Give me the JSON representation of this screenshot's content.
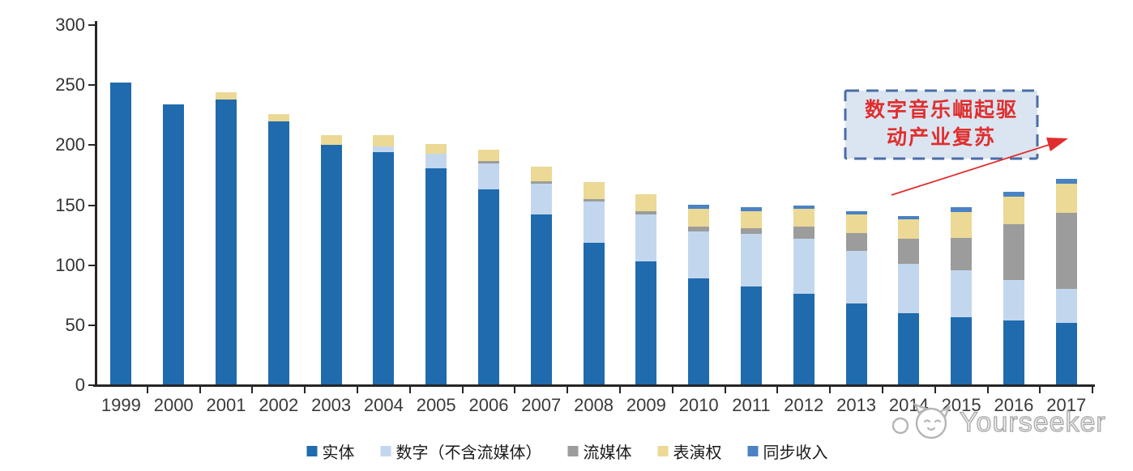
{
  "chart": {
    "annotation": {
      "line1": "数字音乐崛起驱",
      "line2": "动产业复苏",
      "text_color": "#E02E2E",
      "box_fill": "#DAE5F1",
      "box_border": "#4A6DA7",
      "arrow_color": "#E02E2E"
    },
    "watermark": "Yourseeker",
    "axis_color": "#262626"
  },
  "chart_data": {
    "type": "bar",
    "stacked": true,
    "title": "",
    "xlabel": "",
    "ylabel": "",
    "ylim": [
      0,
      300
    ],
    "yticks": [
      0,
      50,
      100,
      150,
      200,
      250,
      300
    ],
    "grid": false,
    "legend_position": "bottom",
    "categories": [
      "1999",
      "2000",
      "2001",
      "2002",
      "2003",
      "2004",
      "2005",
      "2006",
      "2007",
      "2008",
      "2009",
      "2010",
      "2011",
      "2012",
      "2013",
      "2014",
      "2015",
      "2016",
      "2017"
    ],
    "series": [
      {
        "name": "实体",
        "color": "#1F6BAE",
        "values": [
          252,
          234,
          238,
          220,
          200,
          194,
          181,
          163,
          142,
          119,
          103,
          89,
          82,
          76,
          68,
          60,
          57,
          54,
          52
        ]
      },
      {
        "name": "数字（不含流媒体）",
        "color": "#C2D7EE",
        "values": [
          0,
          0,
          0,
          0,
          0,
          5,
          12,
          22,
          26,
          34,
          39,
          39,
          44,
          46,
          44,
          41,
          39,
          34,
          28
        ]
      },
      {
        "name": "流媒体",
        "color": "#9C9C9C",
        "values": [
          0,
          0,
          0,
          0,
          0,
          0,
          0,
          2,
          2,
          2,
          3,
          4,
          5,
          10,
          15,
          21,
          27,
          46,
          64
        ]
      },
      {
        "name": "表演权",
        "color": "#EBD995",
        "values": [
          0,
          0,
          6,
          6,
          8,
          9,
          8,
          9,
          12,
          14,
          14,
          15,
          14,
          15,
          15,
          16,
          21,
          23,
          24
        ]
      },
      {
        "name": "同步收入",
        "color": "#4A82C4",
        "values": [
          0,
          0,
          0,
          0,
          0,
          0,
          0,
          0,
          0,
          0,
          0,
          3,
          3,
          3,
          3,
          3,
          4,
          4,
          4
        ]
      }
    ],
    "totals": [
      252,
      234,
      244,
      226,
      208,
      208,
      201,
      196,
      182,
      169,
      159,
      150,
      148,
      150,
      145,
      141,
      148,
      161,
      172
    ]
  }
}
